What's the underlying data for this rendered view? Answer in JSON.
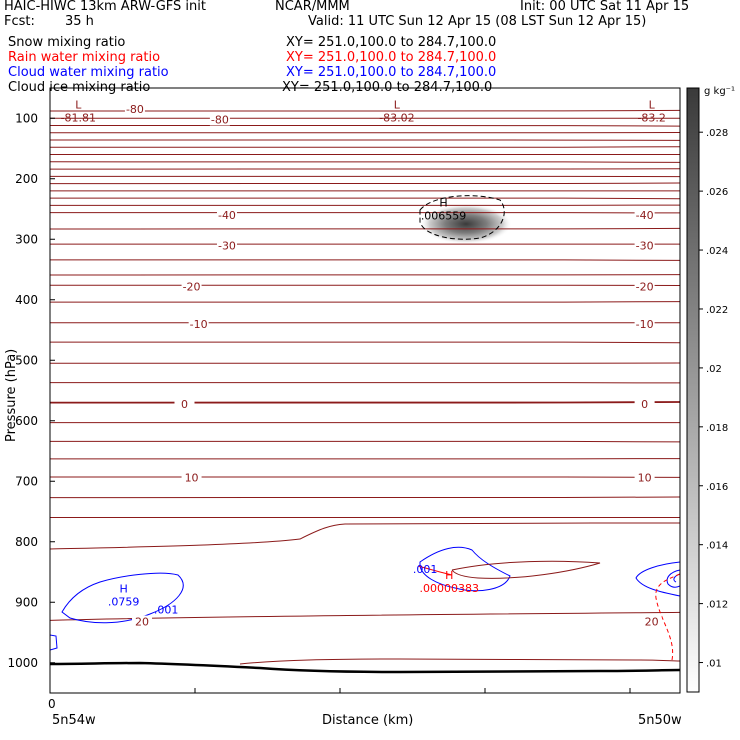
{
  "header": {
    "title": "HAIC-HIWC 13km ARW-GFS init",
    "center": "NCAR/MMM",
    "init": "Init: 00 UTC Sat 11 Apr 15",
    "fcst_label": "Fcst:",
    "fcst_value": "35 h",
    "valid": "Valid: 11 UTC Sun 12 Apr 15 (08 LST Sun 12 Apr 15)"
  },
  "fields": [
    {
      "label": "Snow mixing ratio",
      "xy": "XY= 251.0,100.0 to 284.7,100.0",
      "color": "#000000"
    },
    {
      "label": "Rain water mixing ratio",
      "xy": "XY= 251.0,100.0 to 284.7,100.0",
      "color": "#ff0000"
    },
    {
      "label": "Cloud water mixing ratio",
      "xy": "XY= 251.0,100.0 to 284.7,100.0",
      "color": "#0000ff"
    },
    {
      "label": "Cloud ice mixing ratio",
      "xy": "XY= 251.0,100.0 to 284.7,100.0",
      "color": "#000000"
    }
  ],
  "chart_data": {
    "type": "contour",
    "ylabel": "Pressure (hPa)",
    "xlabel": "Distance (km)",
    "y_ticks": [
      100,
      200,
      300,
      400,
      500,
      600,
      700,
      800,
      900,
      1000
    ],
    "x_ticks": [
      "0"
    ],
    "x_left_label": "5n54w",
    "x_right_label": "5n50w",
    "ylim": [
      1050,
      50
    ],
    "xlim": [
      0,
      445
    ],
    "colorbar": {
      "unit": "g kg⁻¹",
      "ticks": [
        ".01",
        ".012",
        ".014",
        ".016",
        ".018",
        ".02",
        ".022",
        ".024",
        ".026",
        ".028"
      ],
      "tick_values": [
        0.01,
        0.012,
        0.014,
        0.016,
        0.018,
        0.02,
        0.022,
        0.024,
        0.026,
        0.028
      ],
      "range": [
        0.009,
        0.0295
      ]
    },
    "temperature_contours": [
      {
        "level": "-80",
        "p": 98
      },
      {
        "level": "-40",
        "p": 258
      },
      {
        "level": "-30",
        "p": 308
      },
      {
        "level": "-20",
        "p": 376
      },
      {
        "level": "-10",
        "p": 438
      },
      {
        "level": "0",
        "p": 570
      },
      {
        "level": "10",
        "p": 693
      },
      {
        "level": "20",
        "p": 930
      }
    ],
    "temperature_labels": [
      {
        "text": "-80",
        "x": 60,
        "p": 85
      },
      {
        "text": "-80",
        "x": 120,
        "p": 102
      },
      {
        "text": "-40",
        "x": 125,
        "p": 260
      },
      {
        "text": "-40",
        "x": 420,
        "p": 260
      },
      {
        "text": "-30",
        "x": 125,
        "p": 310
      },
      {
        "text": "-30",
        "x": 420,
        "p": 310
      },
      {
        "text": "-20",
        "x": 100,
        "p": 378
      },
      {
        "text": "-20",
        "x": 420,
        "p": 378
      },
      {
        "text": "-10",
        "x": 105,
        "p": 440
      },
      {
        "text": "-10",
        "x": 420,
        "p": 440
      },
      {
        "text": "0",
        "x": 95,
        "p": 572
      },
      {
        "text": "0",
        "x": 420,
        "p": 572
      },
      {
        "text": "10",
        "x": 100,
        "p": 694
      },
      {
        "text": "10",
        "x": 420,
        "p": 694
      },
      {
        "text": "20",
        "x": 65,
        "p": 932
      },
      {
        "text": "20",
        "x": 425,
        "p": 932
      }
    ],
    "extrema": [
      {
        "mark": "L",
        "value": "-81.81",
        "x": 20,
        "p": 100,
        "color": "#8b1a1a"
      },
      {
        "mark": "L",
        "value": "-83.02",
        "x": 245,
        "p": 100,
        "color": "#8b1a1a"
      },
      {
        "mark": "L",
        "value": "-83.2",
        "x": 425,
        "p": 100,
        "color": "#8b1a1a"
      },
      {
        "mark": "H",
        "value": ".006559",
        "x": 278,
        "p": 262,
        "color": "#000000"
      },
      {
        "mark": "H",
        "value": ".0759",
        "x": 52,
        "p": 900,
        "color": "#0000ff"
      },
      {
        "mark": "H",
        "value": ".00000383",
        "x": 282,
        "p": 878,
        "color": "#ff0000"
      }
    ],
    "small_labels": [
      {
        "text": ".001",
        "x": 82,
        "p": 912,
        "color": "#0000ff"
      },
      {
        "text": ".001",
        "x": 265,
        "p": 845,
        "color": "#0000ff"
      }
    ]
  }
}
